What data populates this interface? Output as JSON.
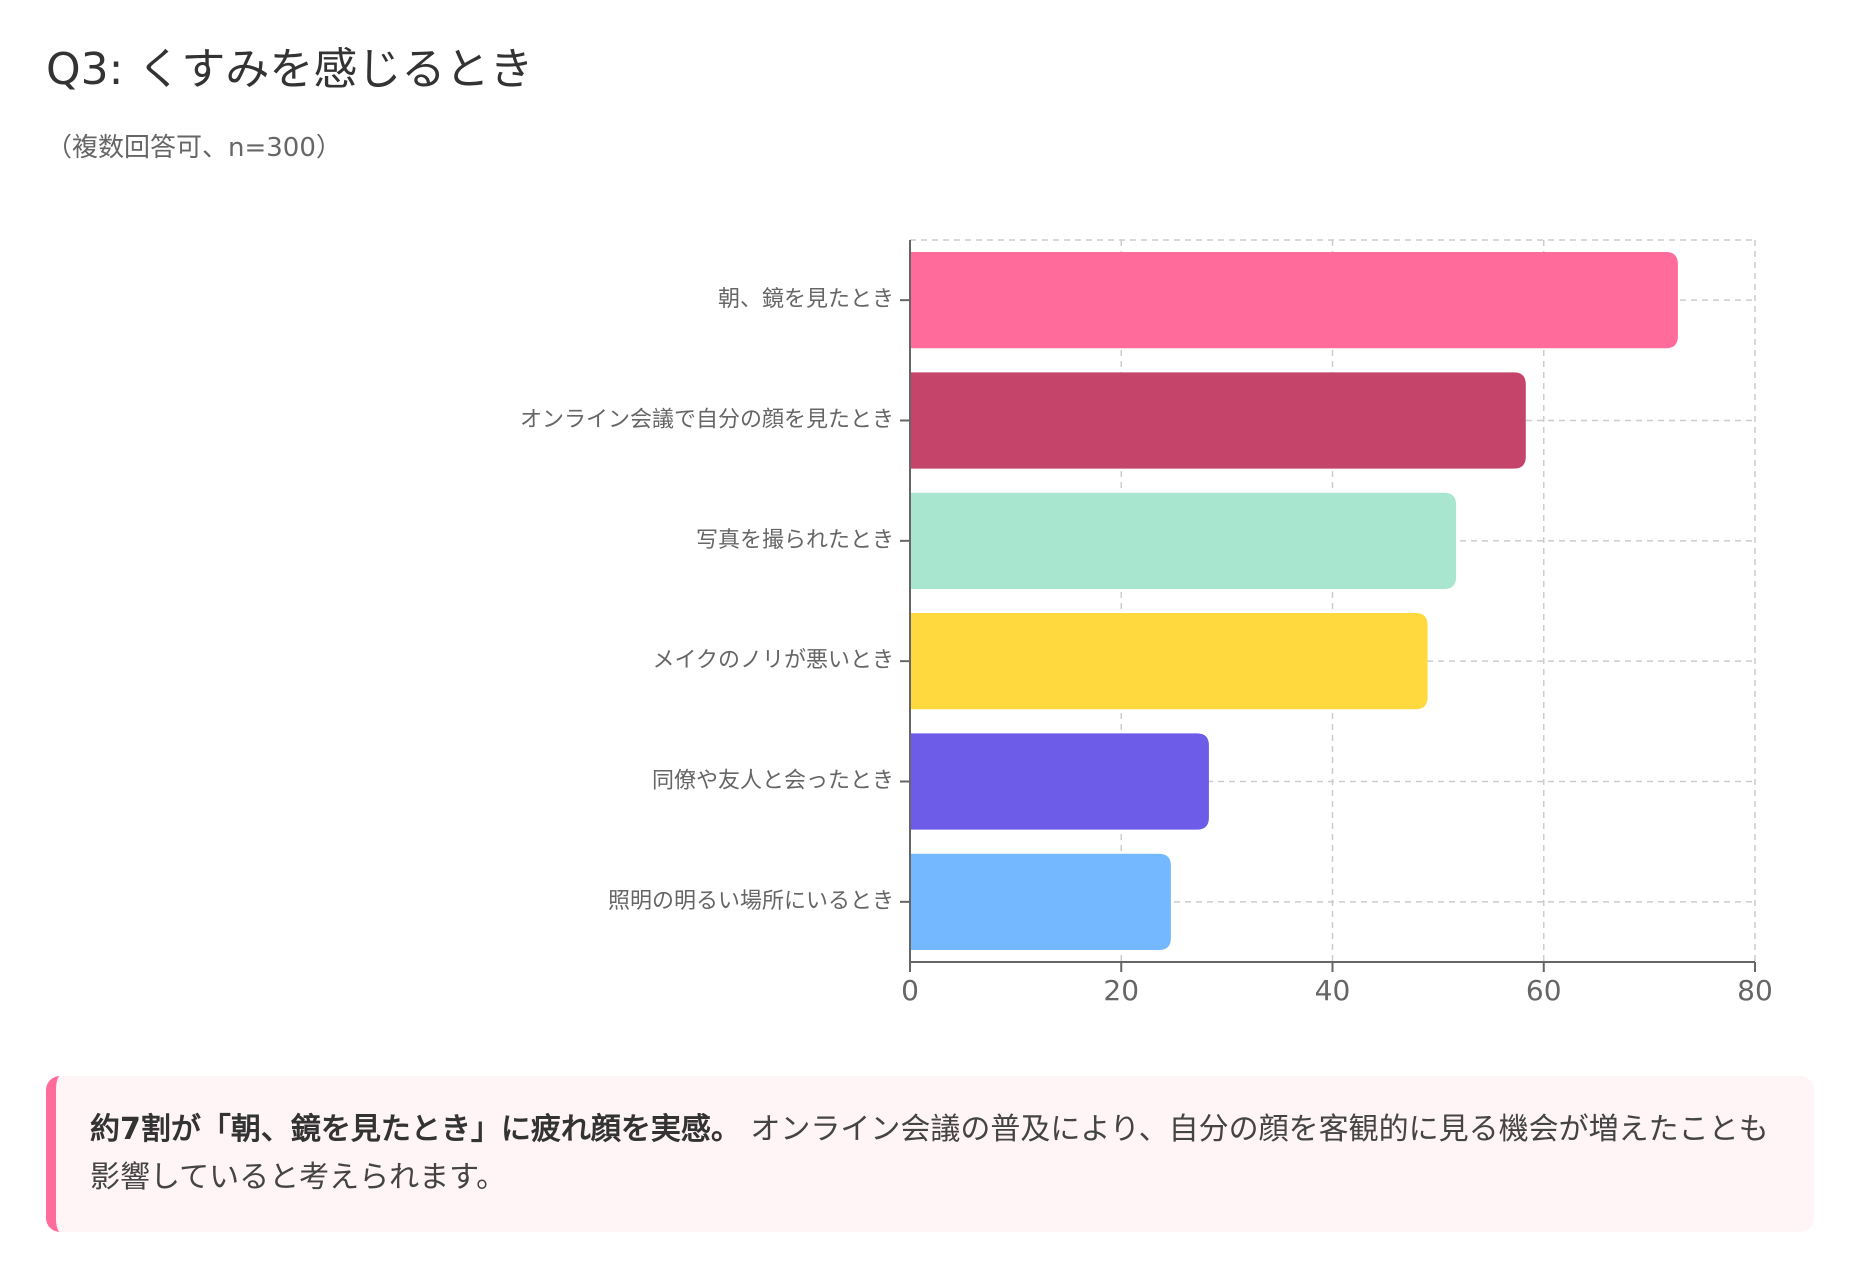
{
  "header": {
    "title": "Q3: くすみを感じるとき",
    "subtitle": "（複数回答可、n=300）"
  },
  "chart_data": {
    "type": "bar",
    "orientation": "horizontal",
    "title": "Q3: くすみを感じるとき",
    "subtitle": "（複数回答可、n=300）",
    "xlabel": "",
    "ylabel": "",
    "xlim": [
      0,
      80
    ],
    "xticks": [
      0,
      20,
      40,
      60,
      80
    ],
    "xtick_labels": [
      "0",
      "20",
      "40",
      "60",
      "80"
    ],
    "grid": true,
    "legend": "none",
    "categories": [
      "朝、鏡を見たとき",
      "オンライン会議で自分の顔を見たとき",
      "写真を撮られたとき",
      "メイクのノリが悪いとき",
      "同僚や友人と会ったとき",
      "照明の明るい場所にいるとき"
    ],
    "values": [
      72.7,
      58.3,
      51.7,
      49.0,
      28.3,
      24.7
    ],
    "colors": [
      "#ff6b9b",
      "#c44569",
      "#a8e6cf",
      "#ffd93d",
      "#6c5ce7",
      "#74b9ff"
    ]
  },
  "callout": {
    "bold_text": "約7割が「朝、鏡を見たとき」に疲れ顔を実感。",
    "body_text": " オンライン会議の普及により、自分の顔を客観的に見る機会が増えたことも影響していると考えられます。",
    "accent_color": "#ff6b9b"
  }
}
